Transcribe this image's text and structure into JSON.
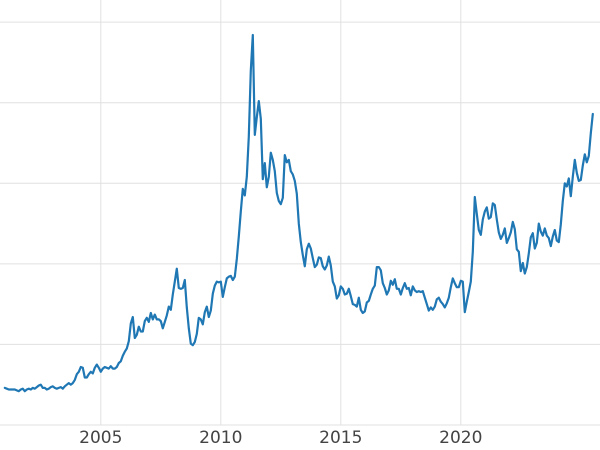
{
  "chart_data": {
    "type": "line",
    "title": "",
    "xlabel": "",
    "ylabel": "",
    "grid": true,
    "legend": false,
    "xlim": [
      2000.8,
      2025.8
    ],
    "ylim": [
      0,
      52
    ],
    "x_ticks": [
      2005,
      2010,
      2015,
      2020
    ],
    "x_tick_labels": [
      "2005",
      "2010",
      "2015",
      "2020"
    ],
    "y_gridlines": [
      0,
      10,
      20,
      30,
      40,
      50
    ],
    "series": [
      {
        "name": "value",
        "color": "#1f77b4",
        "x_start": 2001.0,
        "x_step_years": 0.0833333,
        "values": [
          4.6,
          4.5,
          4.4,
          4.4,
          4.4,
          4.4,
          4.3,
          4.2,
          4.4,
          4.5,
          4.2,
          4.4,
          4.5,
          4.4,
          4.6,
          4.5,
          4.7,
          4.9,
          5.0,
          4.6,
          4.6,
          4.4,
          4.5,
          4.7,
          4.8,
          4.6,
          4.5,
          4.6,
          4.7,
          4.5,
          4.8,
          5.0,
          5.2,
          5.0,
          5.2,
          5.6,
          6.3,
          6.6,
          7.2,
          7.1,
          5.9,
          5.9,
          6.3,
          6.6,
          6.4,
          7.1,
          7.5,
          7.1,
          6.6,
          7.0,
          7.2,
          7.1,
          7.0,
          7.3,
          7.0,
          7.0,
          7.2,
          7.7,
          7.9,
          8.6,
          9.1,
          9.5,
          10.4,
          12.6,
          13.4,
          10.8,
          11.2,
          12.2,
          11.6,
          11.6,
          12.9,
          13.3,
          12.8,
          13.9,
          13.1,
          13.7,
          13.1,
          13.1,
          12.9,
          12.0,
          12.8,
          13.6,
          14.7,
          14.3,
          16.2,
          17.8,
          19.4,
          17.0,
          16.9,
          17.0,
          18.0,
          14.6,
          12.0,
          10.1,
          9.9,
          10.3,
          11.3,
          13.3,
          13.1,
          12.5,
          14.0,
          14.7,
          13.4,
          14.2,
          16.3,
          17.3,
          17.8,
          17.7,
          17.8,
          15.9,
          17.1,
          18.2,
          18.4,
          18.5,
          18.0,
          18.4,
          20.6,
          23.4,
          26.5,
          29.3,
          28.5,
          30.8,
          35.8,
          44.0,
          48.4,
          36.0,
          38.2,
          40.2,
          38.0,
          30.5,
          32.5,
          29.5,
          30.8,
          33.8,
          32.9,
          31.5,
          28.8,
          27.8,
          27.4,
          28.2,
          33.5,
          32.6,
          32.9,
          31.5,
          31.1,
          30.3,
          28.7,
          25.0,
          22.7,
          21.1,
          19.7,
          21.8,
          22.5,
          21.9,
          20.7,
          19.6,
          19.9,
          20.8,
          20.7,
          19.7,
          19.3,
          19.8,
          20.9,
          19.8,
          17.8,
          17.2,
          15.7,
          16.1,
          17.2,
          16.9,
          16.2,
          16.3,
          16.9,
          16.0,
          15.0,
          14.9,
          14.7,
          15.8,
          14.3,
          13.9,
          14.1,
          15.2,
          15.4,
          16.2,
          16.9,
          17.3,
          19.6,
          19.6,
          19.2,
          17.6,
          17.0,
          16.2,
          16.7,
          17.9,
          17.4,
          18.1,
          16.9,
          16.9,
          16.2,
          17.0,
          17.6,
          16.9,
          17.0,
          16.1,
          17.2,
          16.7,
          16.5,
          16.6,
          16.5,
          16.6,
          15.8,
          15.0,
          14.2,
          14.6,
          14.3,
          14.7,
          15.6,
          15.8,
          15.3,
          15.0,
          14.6,
          15.1,
          15.8,
          17.1,
          18.2,
          17.6,
          17.1,
          17.1,
          17.9,
          17.8,
          14.0,
          15.3,
          16.5,
          17.8,
          21.5,
          28.3,
          26.2,
          24.2,
          23.6,
          25.5,
          26.5,
          27.0,
          25.6,
          25.8,
          27.5,
          27.3,
          25.5,
          23.9,
          23.1,
          23.6,
          24.4,
          22.6,
          23.2,
          23.9,
          25.2,
          24.3,
          21.8,
          21.5,
          19.1,
          20.1,
          18.8,
          19.6,
          21.3,
          23.3,
          23.8,
          21.9,
          22.6,
          25.0,
          24.0,
          23.5,
          24.4,
          23.5,
          23.2,
          22.2,
          23.4,
          24.2,
          22.9,
          22.7,
          24.9,
          27.8,
          30.0,
          29.6,
          30.6,
          28.4,
          30.8,
          32.9,
          31.3,
          30.3,
          30.4,
          32.2,
          33.6,
          32.6,
          33.4,
          36.2,
          38.6
        ]
      }
    ]
  },
  "styles": {
    "background": "#ffffff",
    "line_color": "#1f77b4",
    "grid_color": "#e0e0e0",
    "tick_label_color": "#444444"
  }
}
